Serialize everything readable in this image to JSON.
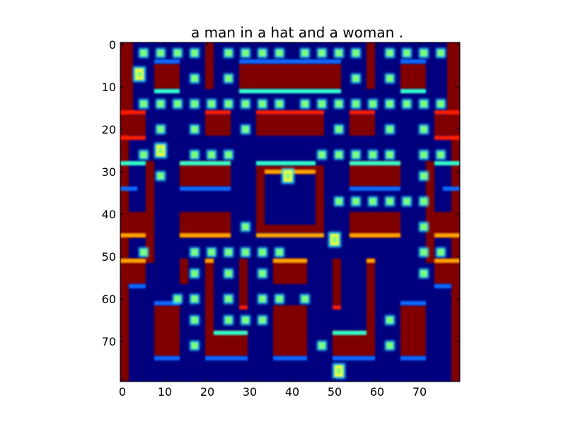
{
  "title": "a man in a hat and a woman .",
  "image": {
    "rows": 80,
    "cols": 80,
    "colormap": "jet",
    "colors": {
      "background": "#00007f",
      "wall": "#800000",
      "wall_edge_red": "#ff1a00",
      "wall_edge_orange": "#ffa500",
      "corridor_edge_cyan": "#33ffcc",
      "corridor_edge_blue": "#0a6bff",
      "pellet": "#7dff7a",
      "pellet_glow": "#36e0ff",
      "sprite_yellow": "#f5ff3a"
    }
  },
  "axes": {
    "x_ticks": [
      0,
      10,
      20,
      30,
      40,
      50,
      60,
      70
    ],
    "y_ticks": [
      0,
      10,
      20,
      30,
      40,
      50,
      60,
      70
    ],
    "x_tick_labels": [
      "0",
      "10",
      "20",
      "30",
      "40",
      "50",
      "60",
      "70"
    ],
    "y_tick_labels": [
      "0",
      "10",
      "20",
      "30",
      "40",
      "50",
      "60",
      "70"
    ],
    "xlim": [
      0,
      80
    ],
    "ylim": [
      80,
      0
    ]
  },
  "maze": {
    "walls": [
      [
        0,
        0,
        2,
        80
      ],
      [
        78,
        0,
        2,
        80
      ],
      [
        2,
        0,
        1,
        17
      ],
      [
        77,
        0,
        1,
        17
      ],
      [
        8,
        5,
        6,
        6
      ],
      [
        20,
        0,
        2,
        11
      ],
      [
        28,
        5,
        24,
        6
      ],
      [
        58,
        0,
        2,
        11
      ],
      [
        66,
        5,
        6,
        6
      ],
      [
        20,
        17,
        6,
        5
      ],
      [
        32,
        17,
        16,
        5
      ],
      [
        54,
        17,
        6,
        5
      ],
      [
        0,
        17,
        6,
        5
      ],
      [
        74,
        17,
        6,
        5
      ],
      [
        6,
        28,
        2,
        24
      ],
      [
        72,
        28,
        2,
        24
      ],
      [
        14,
        28,
        12,
        6
      ],
      [
        54,
        28,
        12,
        6
      ],
      [
        0,
        40,
        6,
        6
      ],
      [
        74,
        40,
        6,
        6
      ],
      [
        14,
        40,
        12,
        6
      ],
      [
        54,
        40,
        12,
        6
      ],
      [
        32,
        29,
        2,
        16
      ],
      [
        46,
        29,
        2,
        16
      ],
      [
        34,
        29,
        12,
        2
      ],
      [
        34,
        43,
        12,
        2
      ],
      [
        0,
        51,
        6,
        6
      ],
      [
        74,
        51,
        6,
        6
      ],
      [
        20,
        51,
        2,
        17
      ],
      [
        58,
        51,
        2,
        17
      ],
      [
        36,
        51,
        8,
        6
      ],
      [
        28,
        51,
        2,
        11
      ],
      [
        50,
        51,
        2,
        11
      ],
      [
        8,
        62,
        6,
        12
      ],
      [
        66,
        62,
        6,
        12
      ],
      [
        20,
        68,
        10,
        6
      ],
      [
        36,
        62,
        8,
        12
      ],
      [
        50,
        68,
        10,
        6
      ],
      [
        14,
        51,
        2,
        6
      ]
    ],
    "edges_cyan": [
      [
        8,
        11,
        6,
        1
      ],
      [
        28,
        11,
        24,
        1
      ],
      [
        66,
        11,
        6,
        1
      ],
      [
        0,
        28,
        6,
        1
      ],
      [
        74,
        28,
        6,
        1
      ],
      [
        14,
        28,
        12,
        1
      ],
      [
        54,
        28,
        12,
        1
      ],
      [
        32,
        28,
        14,
        1
      ],
      [
        22,
        68,
        8,
        1
      ],
      [
        50,
        68,
        8,
        1
      ]
    ],
    "edges_blue": [
      [
        8,
        4,
        6,
        1
      ],
      [
        28,
        4,
        24,
        1
      ],
      [
        66,
        4,
        6,
        1
      ],
      [
        14,
        34,
        12,
        1
      ],
      [
        54,
        34,
        12,
        1
      ],
      [
        0,
        34,
        4,
        1
      ],
      [
        76,
        34,
        4,
        1
      ],
      [
        8,
        74,
        6,
        1
      ],
      [
        20,
        74,
        10,
        1
      ],
      [
        36,
        74,
        8,
        1
      ],
      [
        50,
        74,
        10,
        1
      ],
      [
        66,
        74,
        6,
        1
      ],
      [
        2,
        57,
        4,
        1
      ],
      [
        74,
        57,
        4,
        1
      ],
      [
        8,
        61,
        6,
        1
      ],
      [
        66,
        61,
        6,
        1
      ]
    ],
    "edges_red": [
      [
        0,
        16,
        6,
        1
      ],
      [
        74,
        16,
        6,
        1
      ],
      [
        20,
        16,
        6,
        1
      ],
      [
        32,
        16,
        16,
        1
      ],
      [
        54,
        16,
        6,
        1
      ],
      [
        0,
        22,
        6,
        1
      ],
      [
        74,
        22,
        6,
        1
      ],
      [
        28,
        62,
        2,
        1
      ],
      [
        50,
        62,
        2,
        1
      ]
    ],
    "edges_orange": [
      [
        0,
        45,
        6,
        1
      ],
      [
        74,
        45,
        6,
        1
      ],
      [
        14,
        45,
        12,
        1
      ],
      [
        54,
        45,
        12,
        1
      ],
      [
        32,
        45,
        16,
        1
      ],
      [
        34,
        30,
        12,
        1
      ],
      [
        0,
        51,
        6,
        1
      ],
      [
        74,
        51,
        6,
        1
      ],
      [
        36,
        51,
        8,
        1
      ],
      [
        20,
        51,
        2,
        1
      ],
      [
        58,
        51,
        2,
        1
      ]
    ],
    "pellets": [
      [
        5,
        2
      ],
      [
        9,
        2
      ],
      [
        13,
        2
      ],
      [
        17,
        2
      ],
      [
        25,
        2
      ],
      [
        29,
        2
      ],
      [
        33,
        2
      ],
      [
        37,
        2
      ],
      [
        43,
        2
      ],
      [
        47,
        2
      ],
      [
        51,
        2
      ],
      [
        55,
        2
      ],
      [
        63,
        2
      ],
      [
        67,
        2
      ],
      [
        71,
        2
      ],
      [
        75,
        2
      ],
      [
        17,
        8
      ],
      [
        25,
        8
      ],
      [
        55,
        8
      ],
      [
        63,
        8
      ],
      [
        5,
        14
      ],
      [
        9,
        14
      ],
      [
        13,
        14
      ],
      [
        17,
        14
      ],
      [
        21,
        14
      ],
      [
        25,
        14
      ],
      [
        29,
        14
      ],
      [
        33,
        14
      ],
      [
        37,
        14
      ],
      [
        43,
        14
      ],
      [
        47,
        14
      ],
      [
        51,
        14
      ],
      [
        55,
        14
      ],
      [
        59,
        14
      ],
      [
        63,
        14
      ],
      [
        67,
        14
      ],
      [
        71,
        14
      ],
      [
        75,
        14
      ],
      [
        9,
        20
      ],
      [
        17,
        20
      ],
      [
        29,
        20
      ],
      [
        51,
        20
      ],
      [
        63,
        20
      ],
      [
        71,
        20
      ],
      [
        5,
        26
      ],
      [
        17,
        26
      ],
      [
        21,
        26
      ],
      [
        25,
        26
      ],
      [
        47,
        26
      ],
      [
        51,
        26
      ],
      [
        55,
        26
      ],
      [
        59,
        26
      ],
      [
        63,
        26
      ],
      [
        71,
        26
      ],
      [
        75,
        26
      ],
      [
        9,
        31
      ],
      [
        71,
        31
      ],
      [
        51,
        37
      ],
      [
        55,
        37
      ],
      [
        59,
        37
      ],
      [
        63,
        37
      ],
      [
        67,
        37
      ],
      [
        71,
        37
      ],
      [
        29,
        43
      ],
      [
        71,
        43
      ],
      [
        5,
        49
      ],
      [
        17,
        49
      ],
      [
        21,
        49
      ],
      [
        25,
        49
      ],
      [
        29,
        49
      ],
      [
        33,
        49
      ],
      [
        37,
        49
      ],
      [
        71,
        49
      ],
      [
        75,
        49
      ],
      [
        17,
        54
      ],
      [
        25,
        54
      ],
      [
        33,
        54
      ],
      [
        71,
        54
      ],
      [
        13,
        60
      ],
      [
        17,
        60
      ],
      [
        25,
        60
      ],
      [
        33,
        60
      ],
      [
        37,
        60
      ],
      [
        43,
        60
      ],
      [
        17,
        65
      ],
      [
        25,
        65
      ],
      [
        29,
        65
      ],
      [
        33,
        65
      ],
      [
        63,
        65
      ],
      [
        17,
        71
      ],
      [
        47,
        71
      ],
      [
        63,
        71
      ]
    ],
    "sprites": [
      {
        "name": "player-sprite-hat-icon",
        "x": 9,
        "y": 25
      },
      {
        "name": "woman-sprite-icon",
        "x": 50,
        "y": 46
      },
      {
        "name": "ghost-sprite-icon",
        "x": 51,
        "y": 77
      },
      {
        "name": "small-sprite-icon",
        "x": 39,
        "y": 31
      },
      {
        "name": "tiny-sprite-icon",
        "x": 4,
        "y": 7
      }
    ]
  }
}
